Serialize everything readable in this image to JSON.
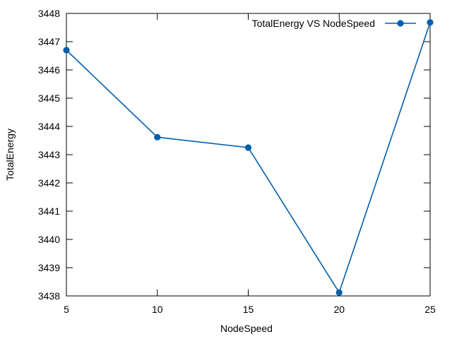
{
  "chart_data": {
    "type": "line",
    "title": "",
    "xlabel": "NodeSpeed",
    "ylabel": "TotalEnergy",
    "xlim": [
      5,
      25
    ],
    "ylim": [
      3438,
      3448
    ],
    "x_ticks": [
      5,
      10,
      15,
      20,
      25
    ],
    "y_ticks": [
      3438,
      3439,
      3440,
      3441,
      3442,
      3443,
      3444,
      3445,
      3446,
      3447,
      3448
    ],
    "grid": false,
    "legend_position": "top-right",
    "series": [
      {
        "name": "TotalEnergy VS NodeSpeed",
        "color": "#005fad",
        "marker": "circle",
        "x": [
          5,
          10,
          15,
          20,
          25
        ],
        "values": [
          3446.7,
          3443.62,
          3443.25,
          3438.12,
          3447.68
        ]
      }
    ]
  }
}
